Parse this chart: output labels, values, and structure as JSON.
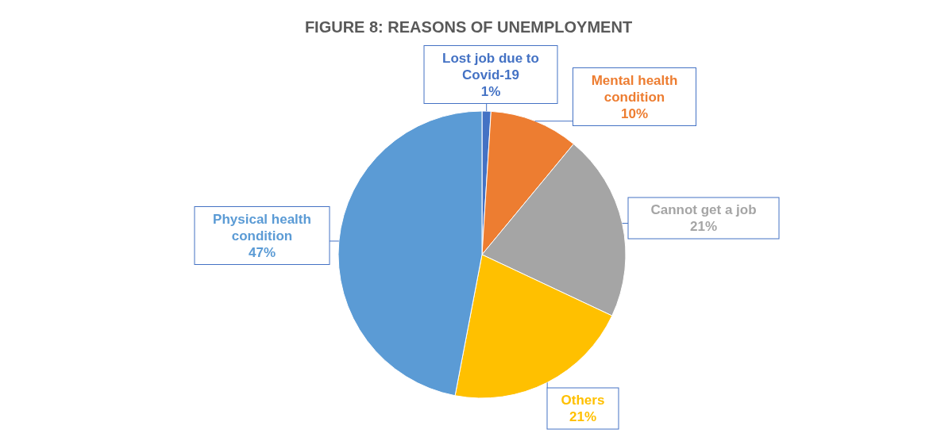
{
  "chart_data": {
    "type": "pie",
    "title": "FIGURE 8: REASONS OF UNEMPLOYMENT",
    "categories": [
      "Lost job due to Covid-19",
      "Mental health condition",
      "Cannot get a job",
      "Others",
      "Physical health condition"
    ],
    "values": [
      1,
      10,
      21,
      21,
      47
    ],
    "colors": [
      "#4472c4",
      "#ed7d31",
      "#a5a5a5",
      "#ffc000",
      "#5b9bd5"
    ],
    "value_labels": [
      "1%",
      "10%",
      "21%",
      "21%",
      "47%"
    ]
  }
}
